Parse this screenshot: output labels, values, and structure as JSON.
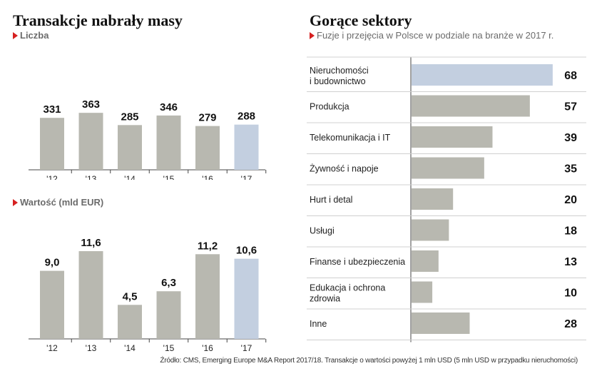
{
  "left": {
    "title": "Transakcje nabrały masy",
    "count_label": "Liczba",
    "value_label": "Wartość (mld EUR)"
  },
  "right": {
    "title": "Gorące sektory",
    "subtitle": "Fuzje i przejęcia w Polsce w podziale na branże w 2017 r."
  },
  "source": "Źródło: CMS, Emerging Europe M&A Report 2017/18. Transakcje o wartości powyżej 1 mln USD (5 mln USD w przypadku nieruchomości)",
  "colors": {
    "bar": "#b8b8b0",
    "highlight": "#c3cfe0",
    "accent": "#d62020"
  },
  "chart_data": [
    {
      "type": "bar",
      "title": "Liczba",
      "categories": [
        "'12",
        "'13",
        "'14",
        "'15",
        "'16",
        "'17"
      ],
      "values": [
        331,
        363,
        285,
        346,
        279,
        288
      ],
      "value_labels": [
        "331",
        "363",
        "285",
        "346",
        "279",
        "288"
      ],
      "highlight": "'17"
    },
    {
      "type": "bar",
      "title": "Wartość (mld EUR)",
      "categories": [
        "'12",
        "'13",
        "'14",
        "'15",
        "'16",
        "'17"
      ],
      "values": [
        9.0,
        11.6,
        4.5,
        6.3,
        11.2,
        10.6
      ],
      "value_labels": [
        "9,0",
        "11,6",
        "4,5",
        "6,3",
        "11,2",
        "10,6"
      ],
      "highlight": "'17"
    },
    {
      "type": "bar",
      "orientation": "horizontal",
      "title": "Fuzje i przejęcia w Polsce w podziale na branże w 2017 r.",
      "categories": [
        [
          "Nieruchomości",
          "i budownictwo"
        ],
        [
          "Produkcja"
        ],
        [
          "Telekomunikacja i IT"
        ],
        [
          "Żywność i napoje"
        ],
        [
          "Hurt i detal"
        ],
        [
          "Usługi"
        ],
        [
          "Finanse i ubezpieczenia"
        ],
        [
          "Edukacja i ochrona",
          "zdrowia"
        ],
        [
          "Inne"
        ]
      ],
      "values": [
        68,
        57,
        39,
        35,
        20,
        18,
        13,
        10,
        28
      ],
      "highlight_index": 0
    }
  ]
}
